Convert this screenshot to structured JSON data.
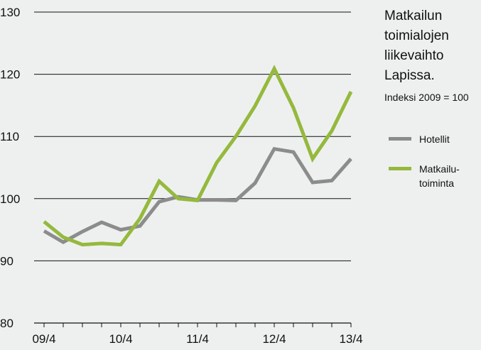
{
  "chart_data": {
    "type": "line",
    "title_lines": [
      "Matkailun",
      "toimialojen",
      "liikevaihto",
      "Lapissa."
    ],
    "subtitle": "Indeksi 2009 = 100",
    "x": [
      "09/4",
      "10/1",
      "10/2",
      "10/3",
      "10/4",
      "11/1",
      "11/2",
      "11/3",
      "11/4",
      "12/1",
      "12/2",
      "12/3",
      "12/4",
      "13/1",
      "13/2",
      "13/3",
      "13/4"
    ],
    "x_tick_labels": [
      "09/4",
      "10/4",
      "11/4",
      "12/4",
      "13/4"
    ],
    "ylim": [
      80,
      130
    ],
    "yticks": [
      80,
      90,
      100,
      110,
      120,
      130
    ],
    "grid": true,
    "legend_position": "right",
    "series": [
      {
        "name": "Hotellit",
        "color": "#8c8c8c",
        "values": [
          94.8,
          93.0,
          94.7,
          96.2,
          95.0,
          95.6,
          99.5,
          100.3,
          99.8,
          99.8,
          99.7,
          102.5,
          108.0,
          107.5,
          102.6,
          102.9,
          106.4
        ]
      },
      {
        "name": "Matkailu-toiminta",
        "legend_lines": [
          "Matkailu-",
          "toiminta"
        ],
        "color": "#95b93d",
        "values": [
          96.3,
          93.8,
          92.6,
          92.8,
          92.6,
          96.8,
          102.8,
          100.0,
          99.7,
          105.8,
          110.0,
          114.9,
          120.9,
          114.6,
          106.4,
          110.9,
          117.2
        ]
      }
    ]
  }
}
